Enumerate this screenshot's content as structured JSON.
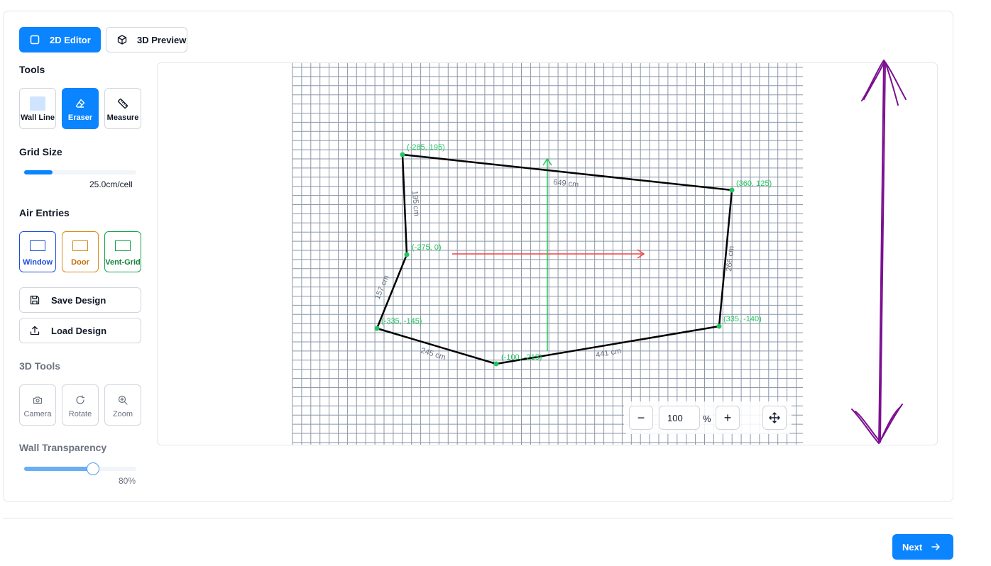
{
  "modes": {
    "editor_2d": "2D Editor",
    "preview_3d": "3D Preview"
  },
  "tools": {
    "heading": "Tools",
    "items": [
      {
        "label": "Wall Line",
        "icon": "wall-line-icon"
      },
      {
        "label": "Eraser",
        "icon": "eraser-icon",
        "active": true
      },
      {
        "label": "Measure",
        "icon": "ruler-icon"
      }
    ]
  },
  "grid": {
    "heading": "Grid Size",
    "value_label": "25.0cm/cell",
    "slider_fraction": 0.25
  },
  "air_entries": {
    "heading": "Air Entries",
    "items": [
      {
        "label": "Window",
        "color": "#1d4ed8"
      },
      {
        "label": "Door",
        "color": "#c2700a"
      },
      {
        "label": "Vent-Grid",
        "color": "#15803d"
      }
    ]
  },
  "actions": {
    "save": "Save Design",
    "load": "Load Design"
  },
  "tools_3d": {
    "heading": "3D Tools",
    "items": [
      {
        "label": "Camera",
        "icon": "camera-icon"
      },
      {
        "label": "Rotate",
        "icon": "rotate-icon"
      },
      {
        "label": "Zoom",
        "icon": "zoom-in-icon"
      }
    ]
  },
  "wall_transparency": {
    "heading": "Wall Transparency",
    "value_label": "80%",
    "fraction": 0.8
  },
  "canvas": {
    "points": [
      {
        "label": "(-285, 195)"
      },
      {
        "label": "(360, 125)"
      },
      {
        "label": "(335, -140)"
      },
      {
        "label": "(-100, -215)"
      },
      {
        "label": "(-335, -145)"
      },
      {
        "label": "(-275, 0)"
      }
    ],
    "measurements": [
      "649 cm",
      "266 cm",
      "441 cm",
      "245 cm",
      "157 cm",
      "195 cm"
    ],
    "axis_colors": {
      "x": "#ef4444",
      "y": "#22c55e"
    },
    "wall_color": "#000000",
    "point_color": "#22c55e",
    "annotation_color": "#7b1090"
  },
  "zoom": {
    "value": "100",
    "unit": "%",
    "minus": "−",
    "plus": "+"
  },
  "footer": {
    "next": "Next"
  }
}
